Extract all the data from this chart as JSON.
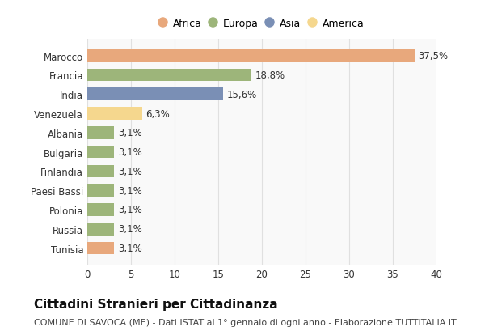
{
  "categories": [
    "Tunisia",
    "Russia",
    "Polonia",
    "Paesi Bassi",
    "Finlandia",
    "Bulgaria",
    "Albania",
    "Venezuela",
    "India",
    "Francia",
    "Marocco"
  ],
  "values": [
    3.1,
    3.1,
    3.1,
    3.1,
    3.1,
    3.1,
    3.1,
    6.3,
    15.6,
    18.8,
    37.5
  ],
  "labels": [
    "3,1%",
    "3,1%",
    "3,1%",
    "3,1%",
    "3,1%",
    "3,1%",
    "3,1%",
    "6,3%",
    "15,6%",
    "18,8%",
    "37,5%"
  ],
  "colors": [
    "#E8A87C",
    "#9DB57A",
    "#9DB57A",
    "#9DB57A",
    "#9DB57A",
    "#9DB57A",
    "#9DB57A",
    "#F5D78E",
    "#7A8FB5",
    "#9DB57A",
    "#E8A87C"
  ],
  "continent_colors": {
    "Africa": "#E8A87C",
    "Europa": "#9DB57A",
    "Asia": "#7A8FB5",
    "America": "#F5D78E"
  },
  "legend_labels": [
    "Africa",
    "Europa",
    "Asia",
    "America"
  ],
  "title": "Cittadini Stranieri per Cittadinanza",
  "subtitle": "COMUNE DI SAVOCA (ME) - Dati ISTAT al 1° gennaio di ogni anno - Elaborazione TUTTITALIA.IT",
  "xlim": [
    0,
    40
  ],
  "xticks": [
    0,
    5,
    10,
    15,
    20,
    25,
    30,
    35,
    40
  ],
  "background_color": "#ffffff",
  "axes_facecolor": "#f9f9f9",
  "grid_color": "#e0e0e0",
  "bar_height": 0.65,
  "title_fontsize": 11,
  "subtitle_fontsize": 8,
  "label_fontsize": 8.5,
  "tick_fontsize": 8.5,
  "legend_fontsize": 9
}
